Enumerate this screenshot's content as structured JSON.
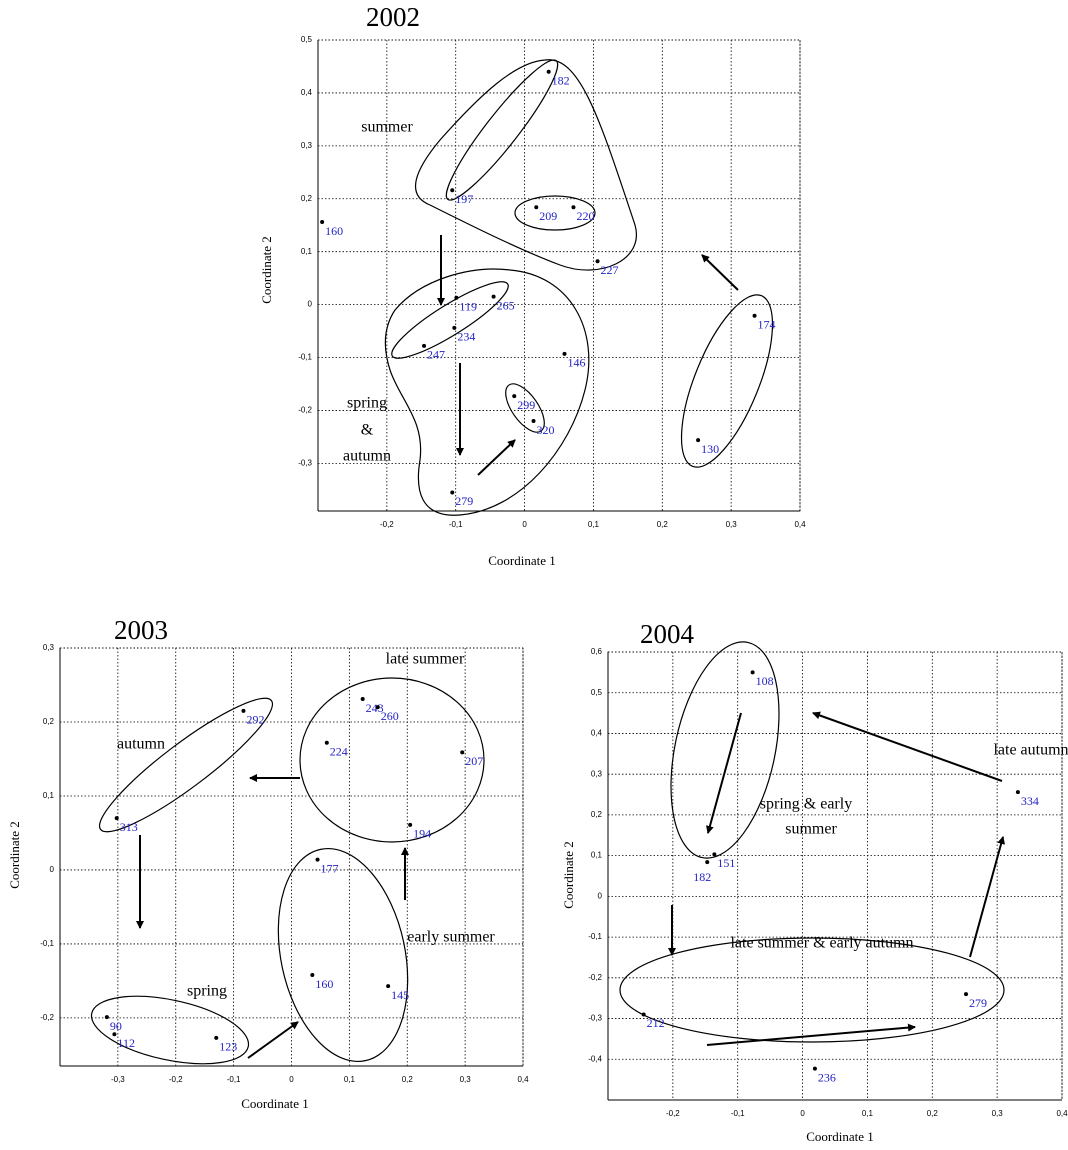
{
  "chart_data": [
    {
      "type": "scatter",
      "title": "2002",
      "x_label": "Coordinate 1",
      "y_label": "Coordinate 2",
      "xlim": [
        -0.3,
        0.4
      ],
      "ylim": [
        -0.39,
        0.5
      ],
      "xticks": [
        {
          "value": -0.2,
          "label": "-0,2"
        },
        {
          "value": -0.1,
          "label": "-0,1"
        },
        0,
        {
          "value": 0.1,
          "label": "0,1"
        },
        {
          "value": 0.2,
          "label": "0,2"
        },
        {
          "value": 0.3,
          "label": "0,3"
        },
        {
          "value": 0.4,
          "label": "0,4"
        }
      ],
      "yticks": [
        {
          "value": 0.5,
          "label": "0,5"
        },
        {
          "value": 0.4,
          "label": "0,4"
        },
        {
          "value": 0.3,
          "label": "0,3"
        },
        {
          "value": 0.2,
          "label": "0,2"
        },
        {
          "value": 0.1,
          "label": "0,1"
        },
        0,
        {
          "value": -0.1,
          "label": "-0,1"
        },
        {
          "value": -0.2,
          "label": "-0,2"
        },
        {
          "value": -0.3,
          "label": "-0,3"
        }
      ],
      "grid": true,
      "color": "#000000",
      "label_color": "#2323c8",
      "labels": [
        "182",
        "197",
        "209",
        "220",
        "227",
        "160",
        "119",
        "265",
        "234",
        "247",
        "146",
        "299",
        "320",
        "279",
        "174",
        "130"
      ],
      "x": [
        0.035,
        -0.105,
        0.017,
        0.071,
        0.106,
        -0.294,
        -0.099,
        -0.045,
        -0.102,
        -0.146,
        0.058,
        -0.015,
        0.013,
        -0.105,
        0.334,
        0.252
      ],
      "y": [
        0.44,
        0.216,
        0.184,
        0.184,
        0.082,
        0.156,
        0.013,
        0.015,
        -0.044,
        -0.078,
        -0.093,
        -0.173,
        -0.22,
        -0.355,
        -0.021,
        -0.256
      ],
      "annotations": [
        [
          "summer"
        ],
        [
          "spring",
          "&",
          "autumn"
        ]
      ]
    },
    {
      "type": "scatter",
      "title": "2003",
      "x_label": "Coordinate 1",
      "y_label": "Coordinate 2",
      "xlim": [
        -0.4,
        0.4
      ],
      "ylim": [
        -0.265,
        0.3
      ],
      "xticks": [
        {
          "value": -0.3,
          "label": "-0,3"
        },
        {
          "value": -0.2,
          "label": "-0,2"
        },
        {
          "value": -0.1,
          "label": "-0,1"
        },
        0,
        {
          "value": 0.1,
          "label": "0,1"
        },
        {
          "value": 0.2,
          "label": "0,2"
        },
        {
          "value": 0.3,
          "label": "0,3"
        },
        {
          "value": 0.4,
          "label": "0,4"
        }
      ],
      "yticks": [
        {
          "value": 0.3,
          "label": "0,3"
        },
        {
          "value": 0.2,
          "label": "0,2"
        },
        {
          "value": 0.1,
          "label": "0,1"
        },
        0,
        {
          "value": -0.1,
          "label": "-0,1"
        },
        {
          "value": -0.2,
          "label": "-0,2"
        }
      ],
      "grid": true,
      "color": "#000000",
      "label_color": "#2323c8",
      "labels": [
        "292",
        "313",
        "243",
        "260",
        "224",
        "207",
        "194",
        "177",
        "160",
        "145",
        "90",
        "112",
        "123"
      ],
      "x": [
        -0.083,
        -0.302,
        0.123,
        0.149,
        0.061,
        0.295,
        0.205,
        0.045,
        0.036,
        0.167,
        -0.319,
        -0.306,
        -0.13
      ],
      "y": [
        0.215,
        0.07,
        0.231,
        0.22,
        0.172,
        0.159,
        0.061,
        0.014,
        -0.142,
        -0.157,
        -0.199,
        -0.222,
        -0.227
      ],
      "annotations": [
        [
          "autumn"
        ],
        [
          "late summer"
        ],
        [
          "early summer"
        ],
        [
          "spring"
        ]
      ]
    },
    {
      "type": "scatter",
      "title": "2004",
      "x_label": "Coordinate 1",
      "y_label": "Coordinate 2",
      "xlim": [
        -0.3,
        0.4
      ],
      "ylim": [
        -0.5,
        0.6
      ],
      "xticks": [
        {
          "value": -0.2,
          "label": "-0,2"
        },
        {
          "value": -0.1,
          "label": "-0,1"
        },
        0,
        {
          "value": 0.1,
          "label": "0,1"
        },
        {
          "value": 0.2,
          "label": "0,2"
        },
        {
          "value": 0.3,
          "label": "0,3"
        },
        {
          "value": 0.4,
          "label": "0,4"
        }
      ],
      "yticks": [
        {
          "value": 0.6,
          "label": "0,6"
        },
        {
          "value": 0.5,
          "label": "0,5"
        },
        {
          "value": 0.4,
          "label": "0,4"
        },
        {
          "value": 0.3,
          "label": "0,3"
        },
        {
          "value": 0.2,
          "label": "0,2"
        },
        {
          "value": 0.1,
          "label": "0,1"
        },
        0,
        {
          "value": -0.1,
          "label": "-0,1"
        },
        {
          "value": -0.2,
          "label": "-0,2"
        },
        {
          "value": -0.3,
          "label": "-0,3"
        },
        {
          "value": -0.4,
          "label": "-0,4"
        }
      ],
      "grid": true,
      "color": "#000000",
      "label_color": "#2323c8",
      "labels": [
        "108",
        "151",
        "182",
        "334",
        "212",
        "279",
        "236"
      ],
      "x": [
        -0.077,
        -0.136,
        -0.147,
        0.332,
        -0.245,
        0.252,
        0.019
      ],
      "y": [
        0.55,
        0.103,
        0.084,
        0.256,
        -0.29,
        -0.24,
        -0.423
      ],
      "annotations": [
        [
          "late autumn"
        ],
        [
          "spring & early",
          "summer"
        ],
        [
          "late summer & early autumn"
        ]
      ]
    }
  ]
}
